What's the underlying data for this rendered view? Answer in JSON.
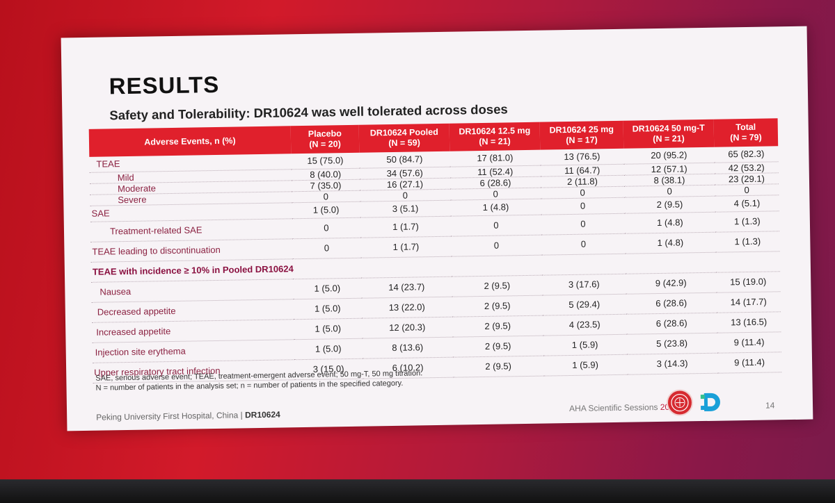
{
  "slide": {
    "title": "RESULTS",
    "subtitle": "Safety and Tolerability: DR10624 was well tolerated across doses"
  },
  "table": {
    "headers": [
      {
        "l1": "Adverse Events, n (%)",
        "l2": ""
      },
      {
        "l1": "Placebo",
        "l2": "(N = 20)"
      },
      {
        "l1": "DR10624 Pooled",
        "l2": "(N = 59)"
      },
      {
        "l1": "DR10624 12.5 mg",
        "l2": "(N = 21)"
      },
      {
        "l1": "DR10624 25 mg",
        "l2": "(N = 17)"
      },
      {
        "l1": "DR10624 50 mg-T",
        "l2": "(N = 21)"
      },
      {
        "l1": "Total",
        "l2": "(N = 79)"
      }
    ],
    "rows": [
      {
        "label": "TEAE",
        "cells": [
          "15 (75.0)",
          "50 (84.7)",
          "17 (81.0)",
          "13 (76.5)",
          "20 (95.2)",
          "65 (82.3)"
        ]
      },
      {
        "label": "Mild",
        "cells": [
          "8 (40.0)",
          "34 (57.6)",
          "11 (52.4)",
          "11 (64.7)",
          "12 (57.1)",
          "42 (53.2)"
        ]
      },
      {
        "label": "Moderate",
        "cells": [
          "7 (35.0)",
          "16 (27.1)",
          "6 (28.6)",
          "2 (11.8)",
          "8 (38.1)",
          "23 (29.1)"
        ]
      },
      {
        "label": "Severe",
        "cells": [
          "0",
          "0",
          "0",
          "0",
          "0",
          "0"
        ]
      },
      {
        "label": "SAE",
        "cells": [
          "1 (5.0)",
          "3 (5.1)",
          "1 (4.8)",
          "0",
          "2 (9.5)",
          "4 (5.1)"
        ]
      },
      {
        "label": "Treatment-related SAE",
        "cells": [
          "0",
          "1 (1.7)",
          "0",
          "0",
          "1 (4.8)",
          "1 (1.3)"
        ]
      },
      {
        "label": "TEAE leading to discontinuation",
        "cells": [
          "0",
          "1 (1.7)",
          "0",
          "0",
          "1 (4.8)",
          "1 (1.3)"
        ]
      },
      {
        "label": "TEAE with incidence ≥ 10% in Pooled DR10624",
        "cells": []
      },
      {
        "label": "Nausea",
        "cells": [
          "1 (5.0)",
          "14 (23.7)",
          "2 (9.5)",
          "3 (17.6)",
          "9 (42.9)",
          "15 (19.0)"
        ]
      },
      {
        "label": "Decreased appetite",
        "cells": [
          "1 (5.0)",
          "13 (22.0)",
          "2 (9.5)",
          "5 (29.4)",
          "6 (28.6)",
          "14 (17.7)"
        ]
      },
      {
        "label": "Increased appetite",
        "cells": [
          "1 (5.0)",
          "12 (20.3)",
          "2 (9.5)",
          "4 (23.5)",
          "6 (28.6)",
          "13 (16.5)"
        ]
      },
      {
        "label": "Injection site erythema",
        "cells": [
          "1 (5.0)",
          "8 (13.6)",
          "2 (9.5)",
          "1 (5.9)",
          "5 (23.8)",
          "9 (11.4)"
        ]
      },
      {
        "label": "Upper respiratory tract infection",
        "cells": [
          "3 (15.0)",
          "6 (10.2)",
          "2 (9.5)",
          "1 (5.9)",
          "3 (14.3)",
          "9 (11.4)"
        ]
      }
    ]
  },
  "footnotes": [
    "SAE, serious adverse event; TEAE, treatment-emergent adverse event; 50 mg-T, 50 mg titration.",
    "N = number of patients in the analysis set; n = number of patients in the specified category."
  ],
  "footer": {
    "institution": "Peking University First Hospital, China |",
    "institution_bold": "DR10624",
    "session": "AHA Scientific Sessions",
    "session_year": "2025",
    "page": "14"
  },
  "colors": {
    "accent_red": "#e0202c",
    "label_maroon": "#8a2040"
  },
  "icons": [
    "university-seal-logo",
    "company-logo"
  ]
}
